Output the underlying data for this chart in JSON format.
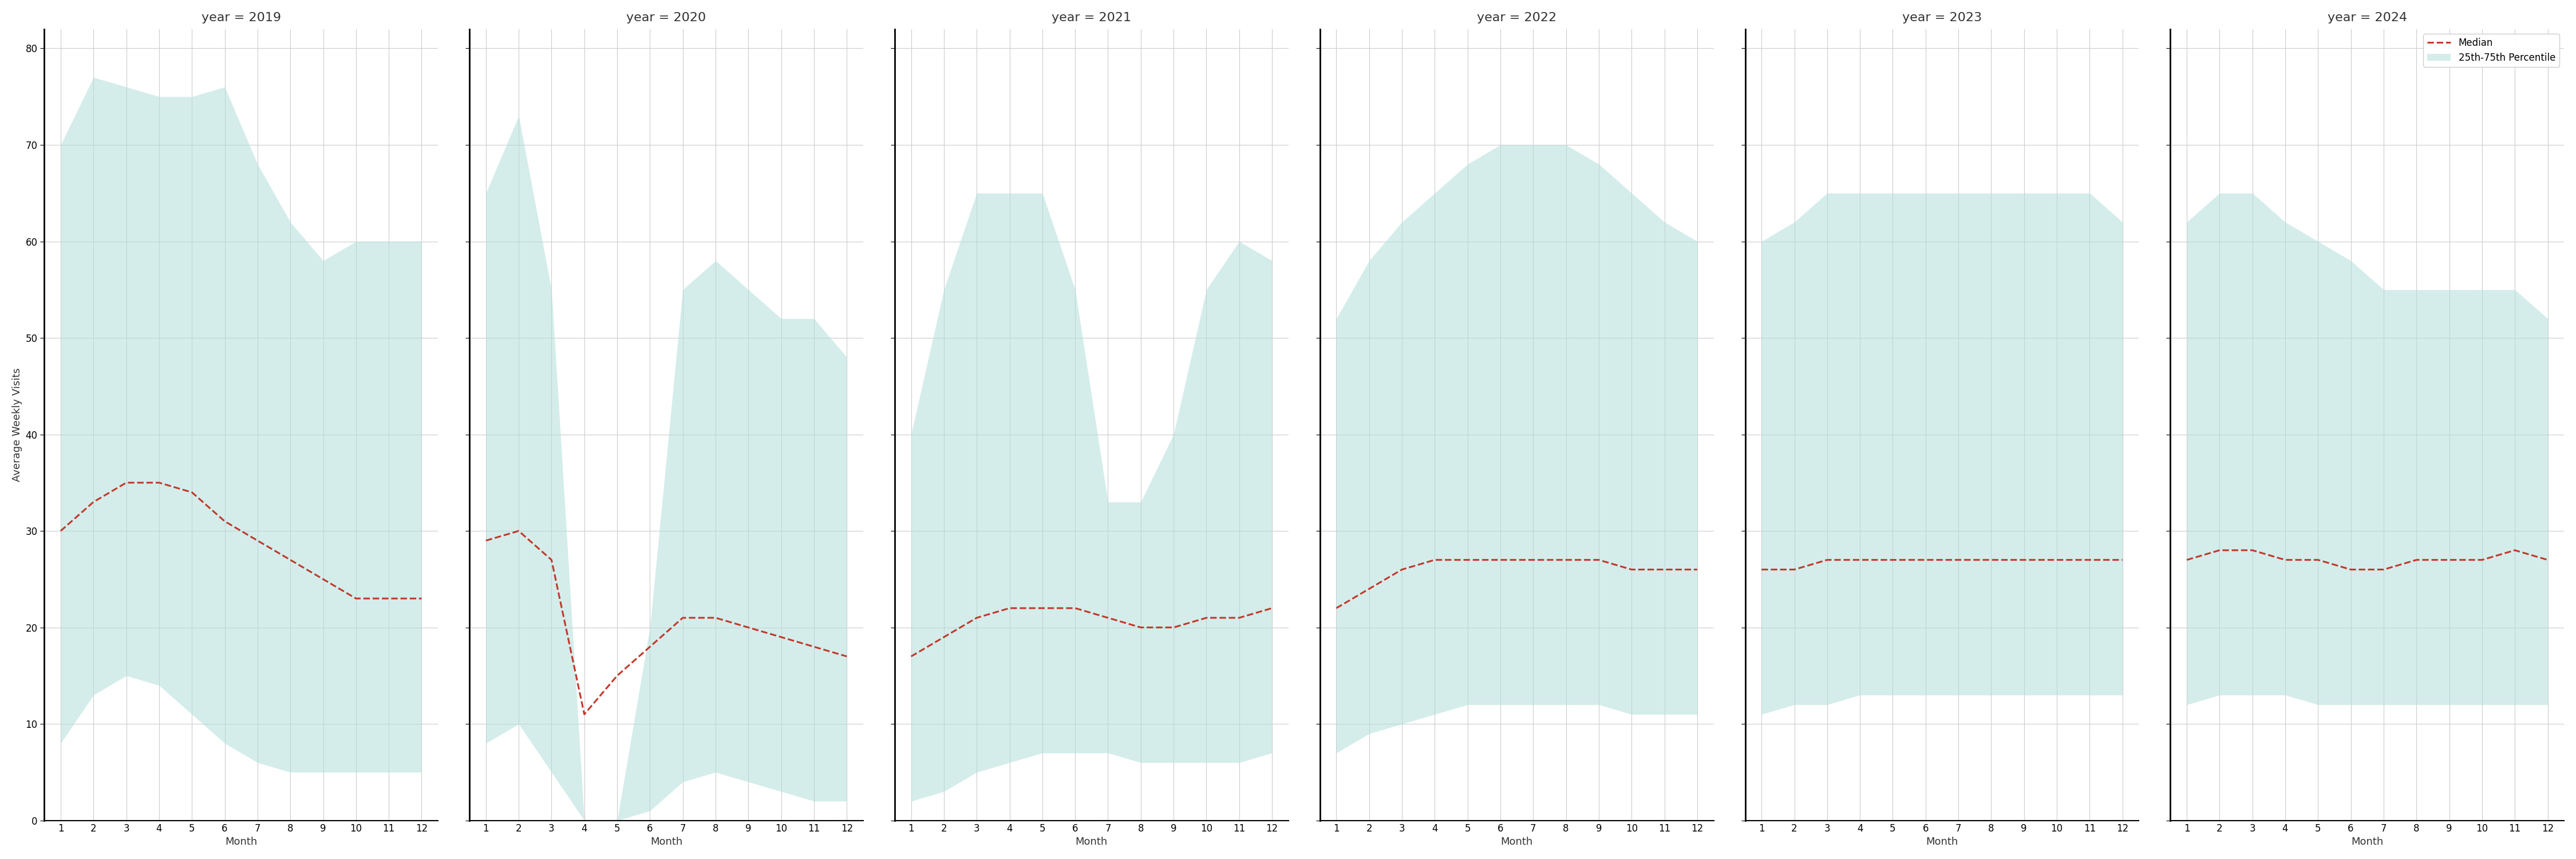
{
  "years": [
    2019,
    2020,
    2021,
    2022,
    2023,
    2024
  ],
  "months": [
    1,
    2,
    3,
    4,
    5,
    6,
    7,
    8,
    9,
    10,
    11,
    12
  ],
  "median": {
    "2019": [
      30,
      33,
      35,
      35,
      34,
      31,
      29,
      27,
      25,
      23,
      23,
      23
    ],
    "2020": [
      29,
      30,
      27,
      11,
      15,
      18,
      21,
      21,
      20,
      19,
      18,
      17
    ],
    "2021": [
      17,
      19,
      21,
      22,
      22,
      22,
      21,
      20,
      20,
      21,
      21,
      22
    ],
    "2022": [
      22,
      24,
      26,
      27,
      27,
      27,
      27,
      27,
      27,
      26,
      26,
      26
    ],
    "2023": [
      26,
      26,
      27,
      27,
      27,
      27,
      27,
      27,
      27,
      27,
      27,
      27
    ],
    "2024": [
      27,
      28,
      28,
      27,
      27,
      26,
      26,
      27,
      27,
      27,
      28,
      27
    ]
  },
  "p25": {
    "2019": [
      8,
      13,
      15,
      14,
      11,
      8,
      6,
      5,
      5,
      5,
      5,
      5
    ],
    "2020": [
      8,
      10,
      5,
      0,
      0,
      1,
      4,
      5,
      4,
      3,
      2,
      2
    ],
    "2021": [
      2,
      3,
      5,
      6,
      7,
      7,
      7,
      6,
      6,
      6,
      6,
      7
    ],
    "2022": [
      7,
      9,
      10,
      11,
      12,
      12,
      12,
      12,
      12,
      11,
      11,
      11
    ],
    "2023": [
      11,
      12,
      12,
      13,
      13,
      13,
      13,
      13,
      13,
      13,
      13,
      13
    ],
    "2024": [
      12,
      13,
      13,
      13,
      12,
      12,
      12,
      12,
      12,
      12,
      12,
      12
    ]
  },
  "p75": {
    "2019": [
      70,
      77,
      76,
      75,
      75,
      76,
      68,
      62,
      58,
      60,
      60,
      60
    ],
    "2020": [
      65,
      73,
      55,
      0,
      0,
      20,
      55,
      58,
      55,
      52,
      52,
      48
    ],
    "2021": [
      40,
      55,
      65,
      65,
      65,
      55,
      33,
      33,
      40,
      55,
      60,
      58
    ],
    "2022": [
      52,
      58,
      62,
      65,
      68,
      70,
      70,
      70,
      68,
      65,
      62,
      60
    ],
    "2023": [
      60,
      62,
      65,
      65,
      65,
      65,
      65,
      65,
      65,
      65,
      65,
      62
    ],
    "2024": [
      62,
      65,
      65,
      62,
      60,
      58,
      55,
      55,
      55,
      55,
      55,
      52
    ]
  },
  "fill_color": "#b2dfdb",
  "fill_alpha": 0.55,
  "line_color": "#c0392b",
  "bg_color": "#ffffff",
  "ylabel": "Average Weekly Visits",
  "xlabel": "Month",
  "ylim": [
    0,
    82
  ],
  "yticks": [
    0,
    10,
    20,
    30,
    40,
    50,
    60,
    70,
    80
  ],
  "legend_median": "Median",
  "legend_fill": "25th-75th Percentile",
  "title_fontsize": 16,
  "tick_fontsize": 12,
  "label_fontsize": 13
}
